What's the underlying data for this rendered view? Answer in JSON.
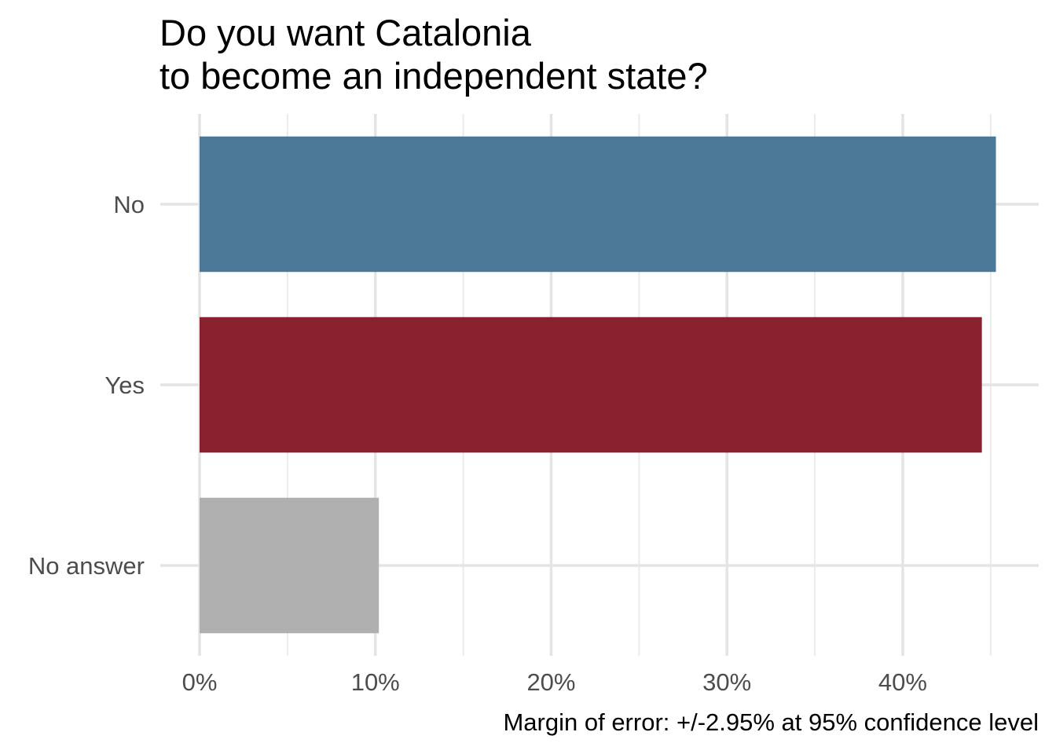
{
  "chart_data": {
    "type": "bar",
    "orientation": "horizontal",
    "title_lines": [
      "Do you want Catalonia",
      "to become an independent state?"
    ],
    "caption": "Margin of error: +/-2.95% at 95% confidence level",
    "categories": [
      "No",
      "Yes",
      "No answer"
    ],
    "values": [
      45.3,
      44.5,
      10.2
    ],
    "colors": [
      "#4C7898",
      "#88202D",
      "#B0B0B0"
    ],
    "x_ticks": [
      0,
      10,
      20,
      30,
      40
    ],
    "x_tick_labels": [
      "0%",
      "10%",
      "20%",
      "30%",
      "40%"
    ],
    "xlim": [
      0,
      45.5
    ],
    "xlabel": "",
    "ylabel": "",
    "grid": true,
    "legend": "none"
  }
}
